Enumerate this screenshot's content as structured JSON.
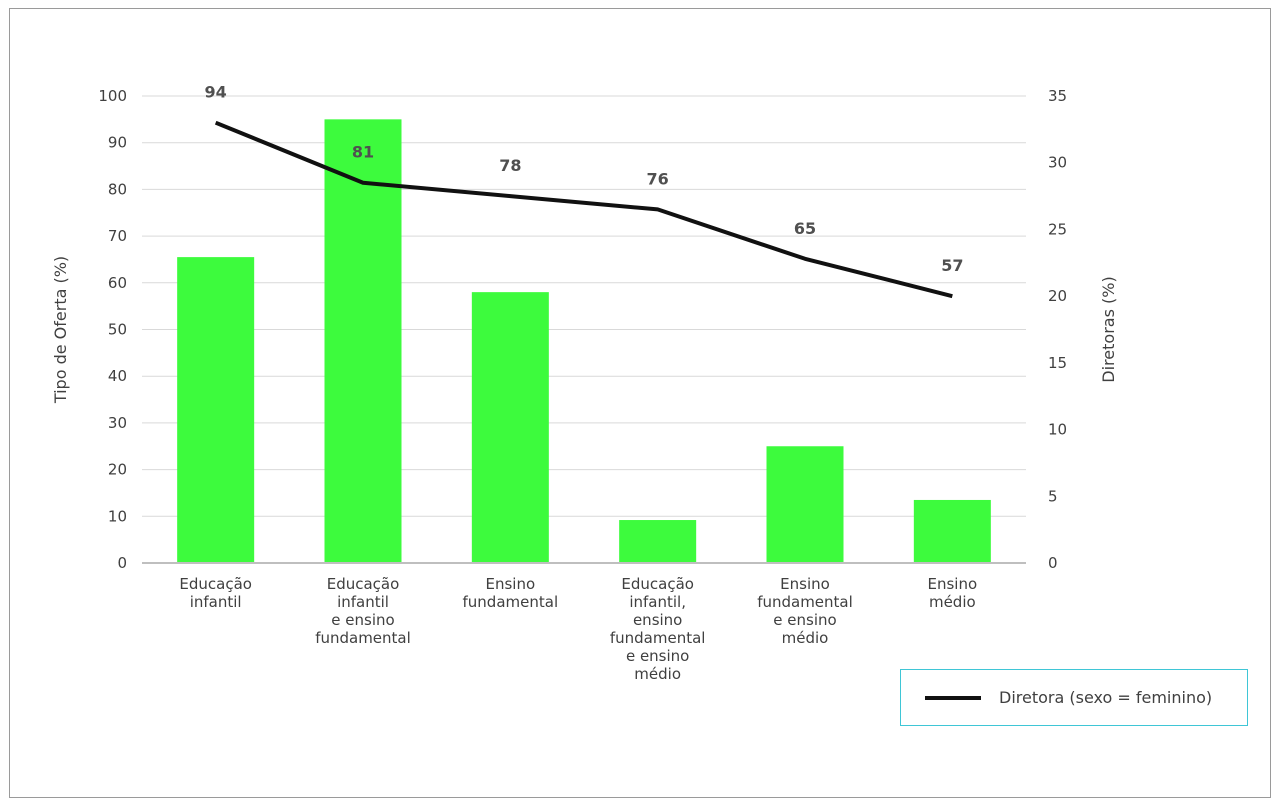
{
  "chart_data": {
    "type": "bar",
    "categories": [
      [
        "Educação",
        "infantil"
      ],
      [
        "Educação",
        "infantil",
        "e ensino",
        "fundamental"
      ],
      [
        "Ensino",
        "fundamental"
      ],
      [
        "Educação",
        "infantil,",
        "ensino",
        "fundamental",
        "e ensino",
        "médio"
      ],
      [
        "Ensino",
        "fundamental",
        "e ensino",
        "médio"
      ],
      [
        "Ensino",
        "médio"
      ]
    ],
    "bar_values": [
      65.5,
      95,
      58,
      9.2,
      25,
      13.5
    ],
    "line_series": {
      "name": "Diretora (sexo = feminino)",
      "values": [
        33,
        28.5,
        27.5,
        26.5,
        22.8,
        20
      ],
      "labels": [
        "94",
        "81",
        "78",
        "76",
        "65",
        "57"
      ]
    },
    "y_left": {
      "label": "Tipo de Oferta (%)",
      "min": 0,
      "max": 100,
      "step": 10
    },
    "y_right": {
      "label": "Diretoras (%)",
      "min": 0,
      "max": 35,
      "step": 5
    },
    "bar_color": "#3dfb3d",
    "line_color": "#111111",
    "legend_position": "bottom-right",
    "grid": true
  }
}
